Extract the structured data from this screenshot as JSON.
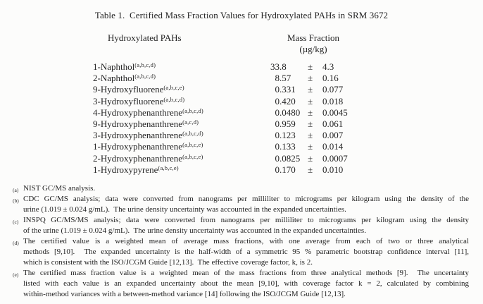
{
  "page": {
    "background_color": "#fcfcfb",
    "text_color": "#242424"
  },
  "title": "Table 1.  Certified Mass Fraction Values for Hydroxylated PAHs in SRM 3672",
  "table": {
    "col_headers": {
      "analyte": "Hydroxylated PAHs",
      "mass_fraction_line1": "Mass Fraction",
      "mass_fraction_line2": "(µg/kg)"
    },
    "plus_minus": "±",
    "rows": [
      {
        "name": "1-Naphthol",
        "footnote_refs": "(a,b,c,d)",
        "value": "33.8",
        "uncertainty": "4.3"
      },
      {
        "name": "2-Naphthol",
        "footnote_refs": "(a,b,c,d)",
        "value": "8.57",
        "uncertainty": "0.16"
      },
      {
        "name": "9-Hydroxyfluorene",
        "footnote_refs": "(a,b,c,e)",
        "value": "0.331",
        "uncertainty": "0.077"
      },
      {
        "name": "3-Hydroxyfluorene",
        "footnote_refs": "(a,b,c,d)",
        "value": "0.420",
        "uncertainty": "0.018"
      },
      {
        "name": "4-Hydroxyphenanthrene",
        "footnote_refs": "(a,b,c,d)",
        "value": "0.0480",
        "uncertainty": "0.0045"
      },
      {
        "name": "9-Hydroxyphenanthrene",
        "footnote_refs": "(a,c,d)",
        "value": "0.959",
        "uncertainty": "0.061"
      },
      {
        "name": "3-Hydroxyphenanthrene",
        "footnote_refs": "(a,b,c,d)",
        "value": "0.123",
        "uncertainty": "0.007"
      },
      {
        "name": "1-Hydroxyphenanthrene",
        "footnote_refs": "(a,b,c,e)",
        "value": "0.133",
        "uncertainty": "0.014"
      },
      {
        "name": "2-Hydroxyphenanthrene",
        "footnote_refs": "(a,b,c,e)",
        "value": "0.0825",
        "uncertainty": "0.0007"
      },
      {
        "name": "1-Hydroxypyrene",
        "footnote_refs": "(a,b,c,e)",
        "value": "0.170",
        "uncertainty": "0.010"
      }
    ]
  },
  "footnotes": [
    {
      "marker": "(a)",
      "lines": [
        "NIST GC/MS analysis."
      ]
    },
    {
      "marker": "(b)",
      "lines": [
        "CDC GC/MS analysis; data were converted from nanograms per milliliter to micrograms per kilogram using the density of the",
        "urine (1.019 ± 0.024 g/mL).  The urine density uncertainty was accounted in the expanded uncertainties."
      ]
    },
    {
      "marker": "(c)",
      "lines": [
        "INSPQ GC/MS/MS analysis; data were converted from nanograms per milliliter to micrograms per kilogram using the density",
        "of the urine (1.019 ± 0.024 g/mL).  The urine density uncertainty was accounted in the expanded uncertainties."
      ]
    },
    {
      "marker": "(d)",
      "lines": [
        "The certified value is a weighted mean of average mass fractions, with one average from each of two or three analytical",
        "methods [9,10].  The expanded uncertainty is the half-width of a symmetric 95 % parametric bootstrap confidence interval [11],",
        "which is consistent with the ISO/JCGM Guide [12,13].  The effective coverage factor, k, is 2."
      ]
    },
    {
      "marker": "(e)",
      "lines": [
        "The certified mass fraction value is a weighted mean of the mass fractions from three analytical methods [9].  The uncertainty",
        "listed with each value is an expanded uncertainty about the mean [9,10], with coverage factor k = 2, calculated by combining",
        "within-method variances with a between-method variance [14] following the ISO/JCGM Guide [12,13]."
      ]
    }
  ]
}
